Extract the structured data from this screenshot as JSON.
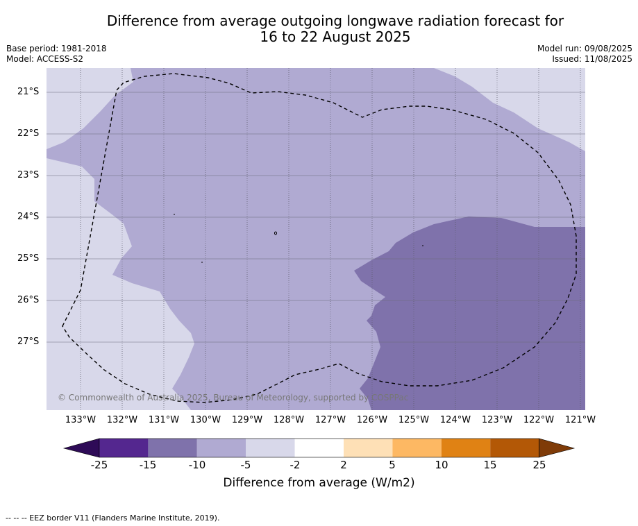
{
  "header": {
    "title_line1": "Difference from average outgoing longwave radiation forecast for",
    "title_line2": "16 to 22 August 2025",
    "base_period": "Base period: 1981-2018",
    "model": "Model: ACCESS-S2",
    "model_run": "Model run: 09/08/2025",
    "issued": "Issued: 11/08/2025"
  },
  "map": {
    "lat_labels": [
      "21°S",
      "22°S",
      "23°S",
      "24°S",
      "25°S",
      "26°S",
      "27°S"
    ],
    "lon_labels": [
      "133°W",
      "132°W",
      "131°W",
      "130°W",
      "129°W",
      "128°W",
      "127°W",
      "126°W",
      "125°W",
      "124°W",
      "123°W",
      "122°W",
      "121°W"
    ],
    "copyright": "© Commonwealth of Australia 2025, Bureau of Meteorology, supported by COSPPac",
    "colors": {
      "band_-5_-2": "#d8d8ea",
      "band_-10_-5": "#b0aad2",
      "band_-15_-10": "#7f72ab"
    }
  },
  "colorbar": {
    "ticks": [
      "-25",
      "-15",
      "-10",
      "-5",
      "-2",
      "2",
      "5",
      "10",
      "15",
      "25"
    ],
    "colors": [
      "#2e0b57",
      "#54278f",
      "#7f72ab",
      "#b0aad2",
      "#d8d8ea",
      "#ffffff",
      "#fee0b6",
      "#fdb863",
      "#e08214",
      "#b35806",
      "#7f3b08"
    ],
    "label": "Difference from average (W/m2)"
  },
  "footnote": "--  --  -- EEZ border V11 (Flanders Marine Institute, 2019)."
}
